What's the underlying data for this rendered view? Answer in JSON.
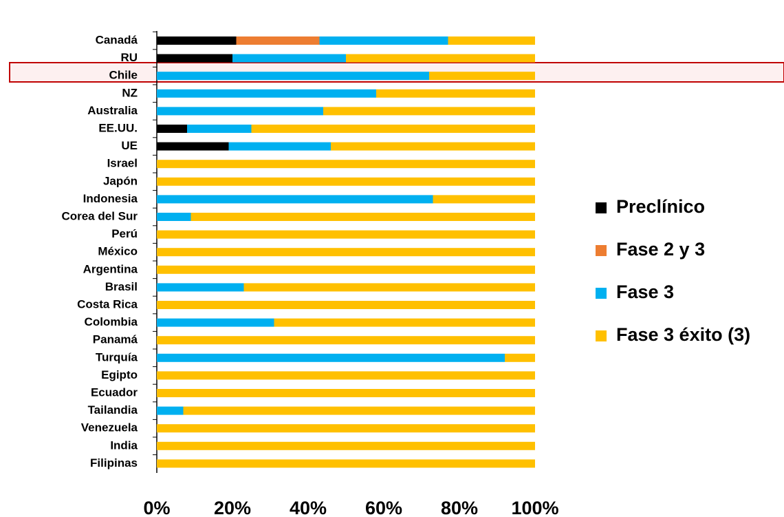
{
  "chart_data": {
    "type": "stacked-barh",
    "categories": [
      "Canadá",
      "RU",
      "Chile",
      "NZ",
      "Australia",
      "EE.UU.",
      "UE",
      "Israel",
      "Japón",
      "Indonesia",
      "Corea del Sur",
      "Perú",
      "México",
      "Argentina",
      "Brasil",
      "Costa Rica",
      "Colombia",
      "Panamá",
      "Turquía",
      "Egipto",
      "Ecuador",
      "Tailandia",
      "Venezuela",
      "India",
      "Filipinas"
    ],
    "series": [
      {
        "name": "Preclínico",
        "color": "#000000",
        "values": [
          21,
          20,
          0,
          0,
          0,
          8,
          19,
          0,
          0,
          0,
          0,
          0,
          0,
          0,
          0,
          0,
          0,
          0,
          0,
          0,
          0,
          0,
          0,
          0,
          0
        ]
      },
      {
        "name": "Fase 2 y 3",
        "color": "#ed7d31",
        "values": [
          22,
          0,
          0,
          0,
          0,
          0,
          0,
          0,
          0,
          0,
          0,
          0,
          0,
          0,
          0,
          0,
          0,
          0,
          0,
          0,
          0,
          0,
          0,
          0,
          0
        ]
      },
      {
        "name": "Fase 3",
        "color": "#00b0f0",
        "values": [
          34,
          30,
          72,
          58,
          44,
          17,
          27,
          0,
          0,
          73,
          9,
          0,
          0,
          0,
          23,
          0,
          31,
          0,
          92,
          0,
          0,
          7,
          0,
          0,
          0
        ]
      },
      {
        "name": "Fase 3 éxito (3)",
        "color": "#ffc000",
        "values": [
          23,
          50,
          28,
          42,
          56,
          75,
          54,
          100,
          100,
          27,
          91,
          100,
          100,
          100,
          77,
          100,
          69,
          100,
          8,
          100,
          100,
          93,
          100,
          100,
          100
        ]
      }
    ],
    "xlim": [
      0,
      100
    ],
    "xticks": [
      {
        "value": 0,
        "label": "0%"
      },
      {
        "value": 20,
        "label": "20%"
      },
      {
        "value": 40,
        "label": "40%"
      },
      {
        "value": 60,
        "label": "60%"
      },
      {
        "value": 80,
        "label": "80%"
      },
      {
        "value": 100,
        "label": "100%"
      }
    ],
    "legend": "right"
  }
}
